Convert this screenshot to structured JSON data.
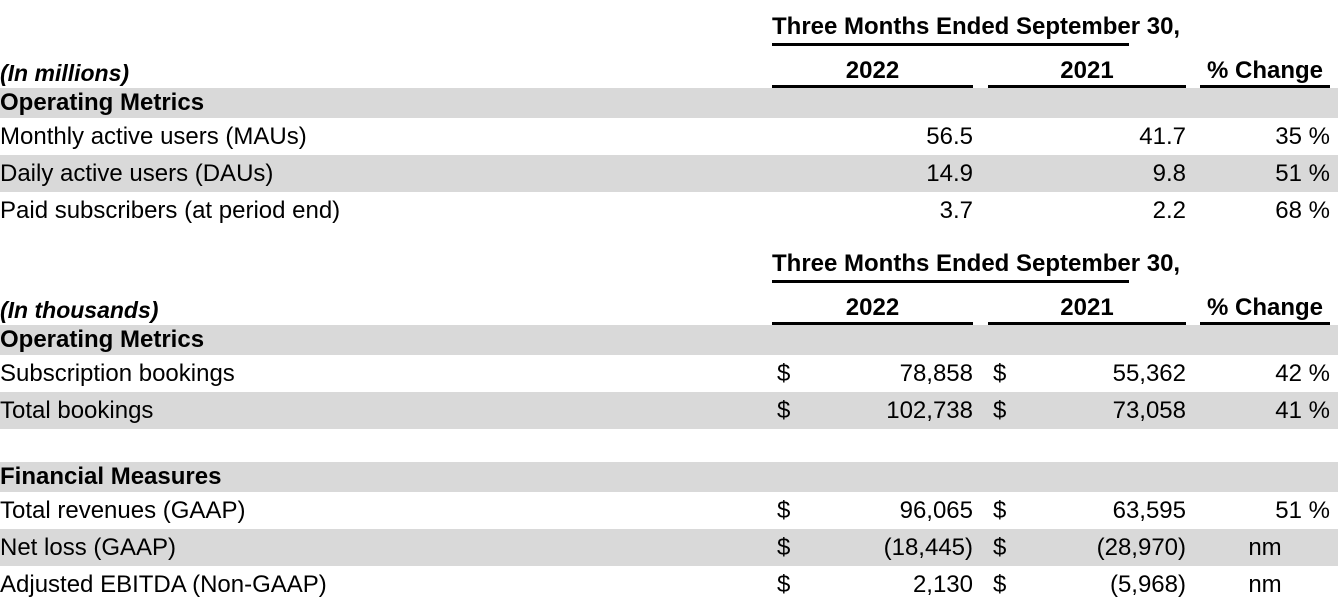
{
  "shade_color": "#d9d9d9",
  "rule_color": "#000000",
  "period_header": "Three Months Ended September 30,",
  "col_headers": {
    "y2022": "2022",
    "y2021": "2021",
    "pct_change": "% Change"
  },
  "tables": [
    {
      "unit_label": "(In millions)",
      "section_header": "Operating Metrics",
      "rows": [
        {
          "label": "Monthly active users (MAUs)",
          "v2022": "56.5",
          "v2021": "41.7",
          "pct": "35 %"
        },
        {
          "label": "Daily active users (DAUs)",
          "v2022": "14.9",
          "v2021": "9.8",
          "pct": "51 %"
        },
        {
          "label": "Paid subscribers (at period end)",
          "v2022": "3.7",
          "v2021": "2.2",
          "pct": "68 %"
        }
      ]
    },
    {
      "unit_label": "(In thousands)",
      "section_header": "Operating Metrics",
      "rows": [
        {
          "label": "Subscription bookings",
          "cur2022": "$",
          "v2022": "78,858",
          "cur2021": "$",
          "v2021": "55,362",
          "pct": "42 %"
        },
        {
          "label": "Total bookings",
          "cur2022": "$",
          "v2022": "102,738",
          "cur2021": "$",
          "v2021": "73,058",
          "pct": "41 %"
        }
      ]
    },
    {
      "section_header": "Financial Measures",
      "rows": [
        {
          "label": "Total revenues (GAAP)",
          "cur2022": "$",
          "v2022": "96,065",
          "cur2021": "$",
          "v2021": "63,595",
          "pct": "51 %"
        },
        {
          "label": "Net loss (GAAP)",
          "cur2022": "$",
          "v2022": "(18,445)",
          "cur2021": "$",
          "v2021": "(28,970)",
          "pct": "nm"
        },
        {
          "label": "Adjusted EBITDA (Non-GAAP)",
          "cur2022": "$",
          "v2022": "2,130",
          "cur2021": "$",
          "v2021": "(5,968)",
          "pct": "nm"
        }
      ]
    }
  ]
}
